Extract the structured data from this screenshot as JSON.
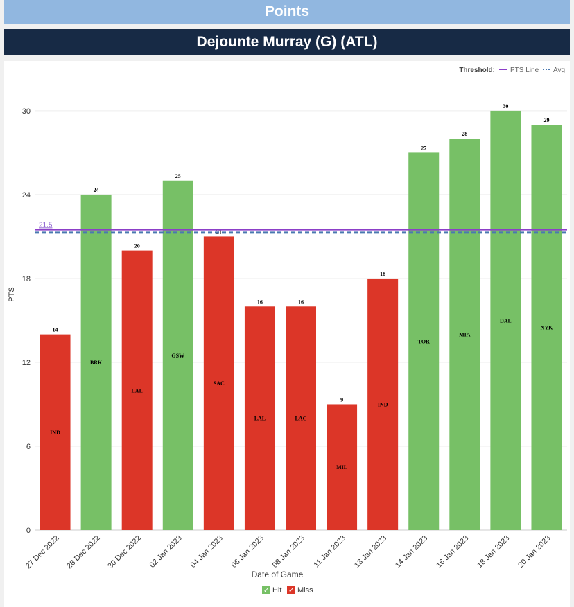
{
  "header": {
    "section": "Points",
    "player": "Dejounte Murray (G) (ATL)"
  },
  "chart_data": {
    "type": "bar",
    "title": "Dejounte Murray (G) (ATL)",
    "xlabel": "Date of Game",
    "ylabel": "PTS",
    "ylim": [
      0,
      32
    ],
    "yticks": [
      0,
      6,
      12,
      18,
      24,
      30
    ],
    "categories": [
      "27 Dec 2022",
      "28 Dec 2022",
      "30 Dec 2022",
      "02 Jan 2023",
      "04 Jan 2023",
      "06 Jan 2023",
      "08 Jan 2023",
      "11 Jan 2023",
      "13 Jan 2023",
      "14 Jan 2023",
      "16 Jan 2023",
      "18 Jan 2023",
      "20 Jan 2023"
    ],
    "values": [
      14,
      24,
      20,
      25,
      21,
      16,
      16,
      9,
      18,
      27,
      28,
      30,
      29
    ],
    "opponents": [
      "IND",
      "BRK",
      "LAL",
      "GSW",
      "SAC",
      "LAL",
      "LAC",
      "MIL",
      "IND",
      "TOR",
      "MIA",
      "DAL",
      "NYK"
    ],
    "threshold": 21.5,
    "threshold_label": "21.5",
    "average": 21.3,
    "legend_threshold": {
      "title": "Threshold:",
      "line": "PTS Line",
      "avg": "Avg"
    },
    "legend": [
      {
        "name": "Hit",
        "color": "#77c066"
      },
      {
        "name": "Miss",
        "color": "#dc3628"
      }
    ],
    "colors": {
      "hit": "#77c066",
      "miss": "#dc3628",
      "line": "#8c3fc8",
      "avg": "#4a78b0"
    }
  }
}
